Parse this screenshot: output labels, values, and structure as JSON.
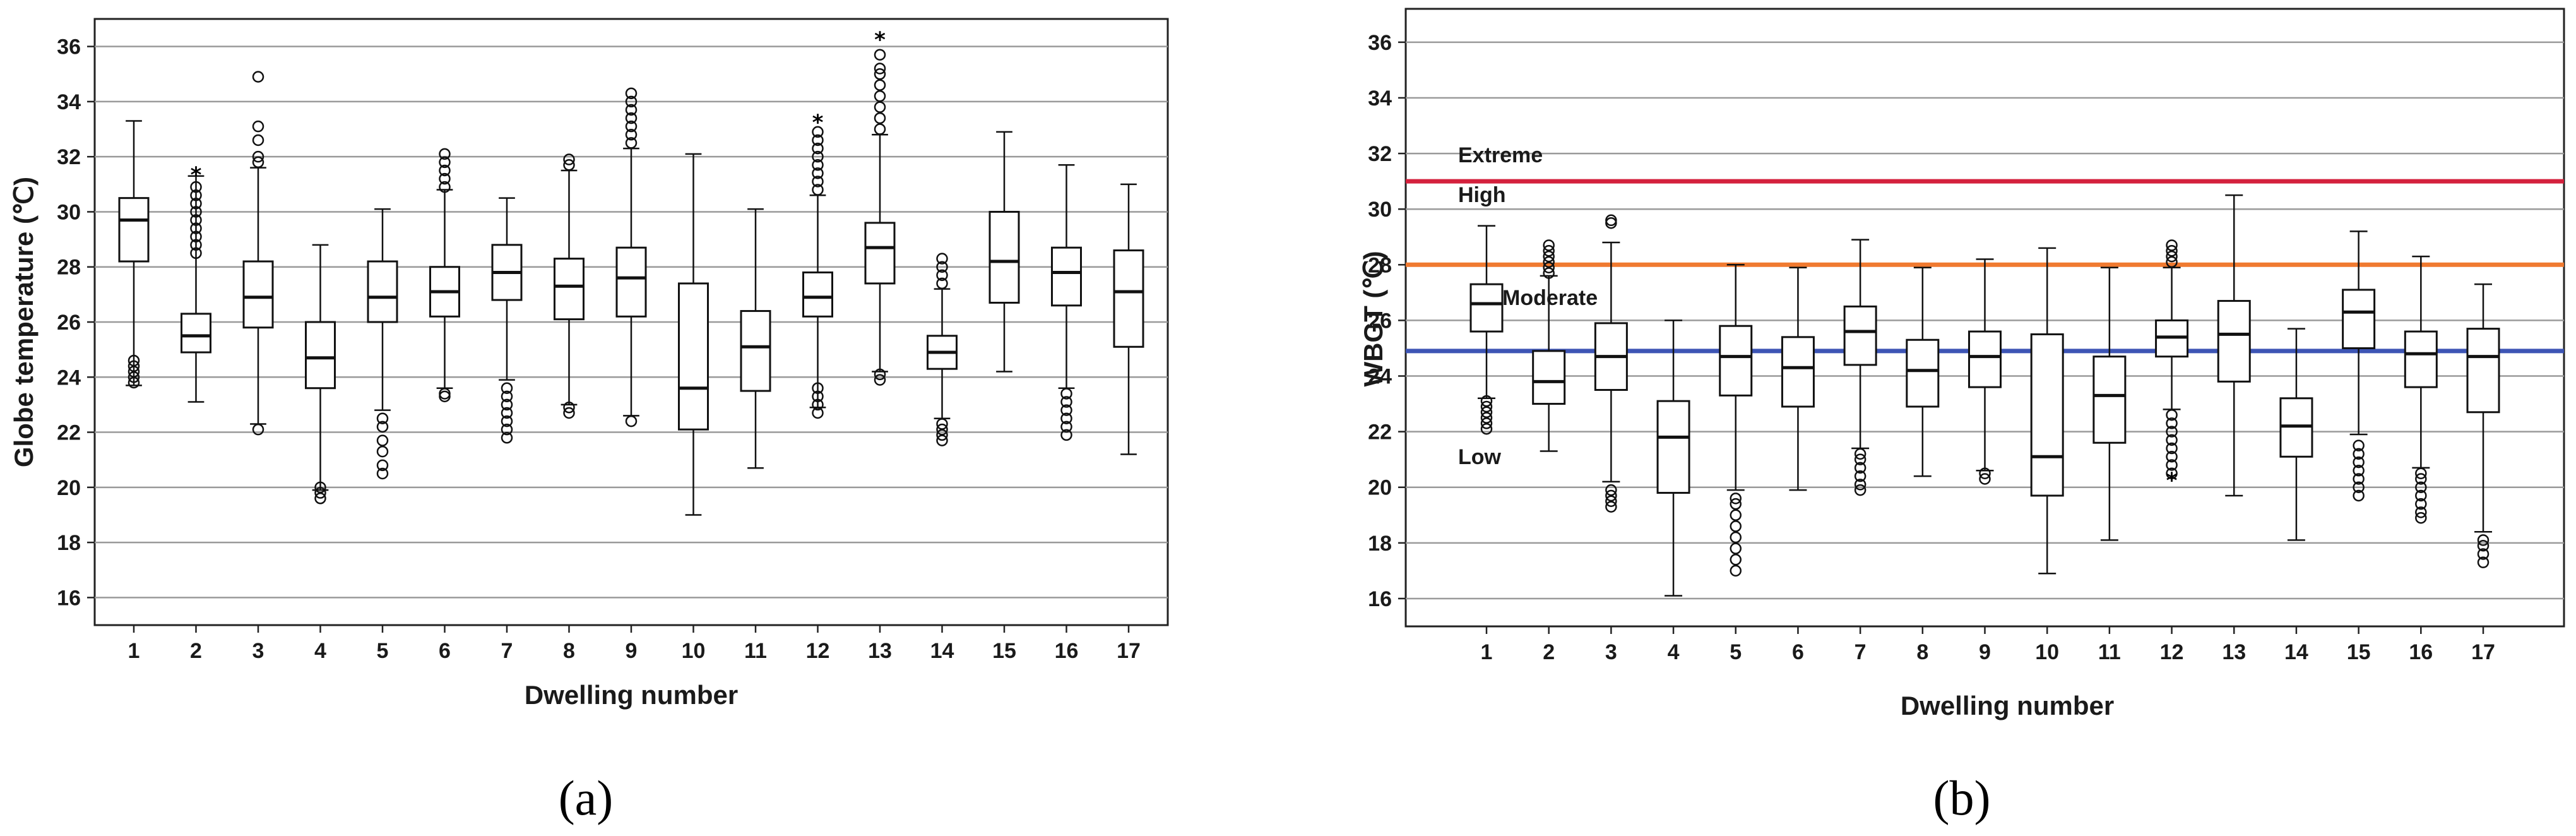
{
  "chart_data": [
    {
      "type": "box",
      "panel_label": "(a)",
      "xlabel": "Dwelling number",
      "ylabel": "Globe temperature (℃)",
      "ylim": [
        15,
        37
      ],
      "yticks": [
        16,
        18,
        20,
        22,
        24,
        26,
        28,
        30,
        32,
        34,
        36
      ],
      "grid": true,
      "categories": [
        "1",
        "2",
        "3",
        "4",
        "5",
        "6",
        "7",
        "8",
        "9",
        "10",
        "11",
        "12",
        "13",
        "14",
        "15",
        "16",
        "17"
      ],
      "boxes": [
        {
          "min": 23.7,
          "q1": 28.2,
          "median": 29.7,
          "q3": 30.5,
          "max": 33.3,
          "outliers": [
            23.8,
            24.0,
            24.2,
            24.4,
            24.6
          ]
        },
        {
          "min": 23.1,
          "q1": 24.9,
          "median": 25.5,
          "q3": 26.3,
          "max": 31.3,
          "outliers": [
            28.5,
            28.8,
            29.1,
            29.4,
            29.7,
            30.0,
            30.3,
            30.6,
            30.9
          ],
          "extremes": [
            31.4
          ]
        },
        {
          "min": 22.3,
          "q1": 25.8,
          "median": 26.9,
          "q3": 28.2,
          "max": 31.6,
          "outliers": [
            22.1,
            31.8,
            32.0,
            32.6,
            33.1,
            34.9
          ]
        },
        {
          "min": 19.9,
          "q1": 23.6,
          "median": 24.7,
          "q3": 26.0,
          "max": 28.8,
          "outliers": [
            19.6,
            19.8,
            20.0
          ]
        },
        {
          "min": 22.8,
          "q1": 26.0,
          "median": 26.9,
          "q3": 28.2,
          "max": 30.1,
          "outliers": [
            20.5,
            20.8,
            21.3,
            21.7,
            22.2,
            22.5
          ]
        },
        {
          "min": 23.6,
          "q1": 26.2,
          "median": 27.1,
          "q3": 28.0,
          "max": 30.8,
          "outliers": [
            23.3,
            23.4,
            30.9,
            31.2,
            31.5,
            31.8,
            32.1
          ]
        },
        {
          "min": 23.9,
          "q1": 26.8,
          "median": 27.8,
          "q3": 28.8,
          "max": 30.5,
          "outliers": [
            21.8,
            22.1,
            22.4,
            22.7,
            23.0,
            23.3,
            23.6
          ]
        },
        {
          "min": 23.0,
          "q1": 26.1,
          "median": 27.3,
          "q3": 28.3,
          "max": 31.5,
          "outliers": [
            22.7,
            22.9,
            31.7,
            31.9
          ]
        },
        {
          "min": 22.6,
          "q1": 26.2,
          "median": 27.6,
          "q3": 28.7,
          "max": 32.3,
          "outliers": [
            22.4,
            32.5,
            32.8,
            33.1,
            33.4,
            33.7,
            34.0,
            34.3
          ]
        },
        {
          "min": 19.0,
          "q1": 22.1,
          "median": 23.6,
          "q3": 27.4,
          "max": 32.1,
          "outliers": []
        },
        {
          "min": 20.7,
          "q1": 23.5,
          "median": 25.1,
          "q3": 26.4,
          "max": 30.1,
          "outliers": []
        },
        {
          "min": 22.9,
          "q1": 26.2,
          "median": 26.9,
          "q3": 27.8,
          "max": 30.6,
          "outliers": [
            22.7,
            23.0,
            23.3,
            23.6,
            30.8,
            31.1,
            31.4,
            31.7,
            32.0,
            32.3,
            32.6,
            32.9
          ],
          "extremes": [
            33.3
          ]
        },
        {
          "min": 24.2,
          "q1": 27.4,
          "median": 28.7,
          "q3": 29.6,
          "max": 32.8,
          "outliers": [
            23.9,
            24.1,
            33.0,
            33.4,
            33.8,
            34.2,
            34.6,
            35.0,
            35.2,
            35.7
          ],
          "extremes": [
            36.3
          ]
        },
        {
          "min": 22.5,
          "q1": 24.3,
          "median": 24.9,
          "q3": 25.5,
          "max": 27.2,
          "outliers": [
            21.7,
            21.9,
            22.1,
            22.3,
            27.4,
            27.7,
            28.0,
            28.3
          ]
        },
        {
          "min": 24.2,
          "q1": 26.7,
          "median": 28.2,
          "q3": 30.0,
          "max": 32.9,
          "outliers": []
        },
        {
          "min": 23.6,
          "q1": 26.6,
          "median": 27.8,
          "q3": 28.7,
          "max": 31.7,
          "outliers": [
            21.9,
            22.2,
            22.5,
            22.8,
            23.1,
            23.4
          ]
        },
        {
          "min": 21.2,
          "q1": 25.1,
          "median": 27.1,
          "q3": 28.6,
          "max": 31.0,
          "outliers": []
        }
      ]
    },
    {
      "type": "box",
      "panel_label": "(b)",
      "xlabel": "Dwelling number",
      "ylabel": "WBGT (℃)",
      "ylim": [
        15,
        37.2
      ],
      "yticks": [
        16,
        18,
        20,
        22,
        24,
        26,
        28,
        30,
        32,
        34,
        36
      ],
      "grid": true,
      "categories": [
        "1",
        "2",
        "3",
        "4",
        "5",
        "6",
        "7",
        "8",
        "9",
        "10",
        "11",
        "12",
        "13",
        "14",
        "15",
        "16",
        "17"
      ],
      "thresholds": [
        {
          "value": 31.0,
          "color": "#d4213d",
          "label": "Extreme",
          "label_above": "Extreme",
          "label_below": "High"
        },
        {
          "value": 28.0,
          "color": "#f07a30",
          "label": "Moderate"
        },
        {
          "value": 24.9,
          "color": "#3d55b5",
          "label": "Low"
        }
      ],
      "zone_labels": [
        "Extreme",
        "High",
        "Moderate",
        "Low"
      ],
      "boxes": [
        {
          "min": 23.2,
          "q1": 25.6,
          "median": 26.6,
          "q3": 27.3,
          "max": 29.4,
          "outliers": [
            22.1,
            22.3,
            22.5,
            22.7,
            22.9,
            23.1
          ]
        },
        {
          "min": 21.3,
          "q1": 23.0,
          "median": 23.8,
          "q3": 24.9,
          "max": 27.6,
          "outliers": [
            27.7,
            27.9,
            28.1,
            28.3,
            28.5,
            28.7
          ]
        },
        {
          "min": 20.2,
          "q1": 23.5,
          "median": 24.7,
          "q3": 25.9,
          "max": 28.8,
          "outliers": [
            19.3,
            19.5,
            19.7,
            19.9,
            29.5,
            29.6
          ]
        },
        {
          "min": 16.1,
          "q1": 19.8,
          "median": 21.8,
          "q3": 23.1,
          "max": 26.0,
          "outliers": []
        },
        {
          "min": 19.9,
          "q1": 23.3,
          "median": 24.7,
          "q3": 25.8,
          "max": 28.0,
          "outliers": [
            17.0,
            17.4,
            17.8,
            18.2,
            18.6,
            19.0,
            19.4,
            19.6
          ]
        },
        {
          "min": 19.9,
          "q1": 22.9,
          "median": 24.3,
          "q3": 25.4,
          "max": 27.9,
          "outliers": []
        },
        {
          "min": 21.4,
          "q1": 24.4,
          "median": 25.6,
          "q3": 26.5,
          "max": 28.9,
          "outliers": [
            19.9,
            20.1,
            20.4,
            20.7,
            21.0,
            21.2
          ]
        },
        {
          "min": 20.4,
          "q1": 22.9,
          "median": 24.2,
          "q3": 25.3,
          "max": 27.9,
          "outliers": []
        },
        {
          "min": 20.6,
          "q1": 23.6,
          "median": 24.7,
          "q3": 25.6,
          "max": 28.2,
          "outliers": [
            20.3,
            20.5
          ]
        },
        {
          "min": 16.9,
          "q1": 19.7,
          "median": 21.1,
          "q3": 25.5,
          "max": 28.6,
          "outliers": []
        },
        {
          "min": 18.1,
          "q1": 21.6,
          "median": 23.3,
          "q3": 24.7,
          "max": 27.9,
          "outliers": []
        },
        {
          "min": 22.8,
          "q1": 24.7,
          "median": 25.4,
          "q3": 26.0,
          "max": 27.9,
          "outliers": [
            20.5,
            20.8,
            21.1,
            21.4,
            21.7,
            22.0,
            22.3,
            22.6,
            28.1,
            28.3,
            28.5,
            28.7
          ],
          "extremes": [
            20.3
          ]
        },
        {
          "min": 19.7,
          "q1": 23.8,
          "median": 25.5,
          "q3": 26.7,
          "max": 30.5,
          "outliers": []
        },
        {
          "min": 18.1,
          "q1": 21.1,
          "median": 22.2,
          "q3": 23.2,
          "max": 25.7,
          "outliers": []
        },
        {
          "min": 21.9,
          "q1": 25.0,
          "median": 26.3,
          "q3": 27.1,
          "max": 29.2,
          "outliers": [
            19.7,
            20.0,
            20.3,
            20.6,
            20.9,
            21.2,
            21.5
          ]
        },
        {
          "min": 20.7,
          "q1": 23.6,
          "median": 24.8,
          "q3": 25.6,
          "max": 28.3,
          "outliers": [
            18.9,
            19.1,
            19.4,
            19.7,
            20.0,
            20.3,
            20.5
          ]
        },
        {
          "min": 18.4,
          "q1": 22.7,
          "median": 24.7,
          "q3": 25.7,
          "max": 27.3,
          "outliers": [
            17.3,
            17.6,
            17.9,
            18.1
          ]
        }
      ]
    }
  ]
}
